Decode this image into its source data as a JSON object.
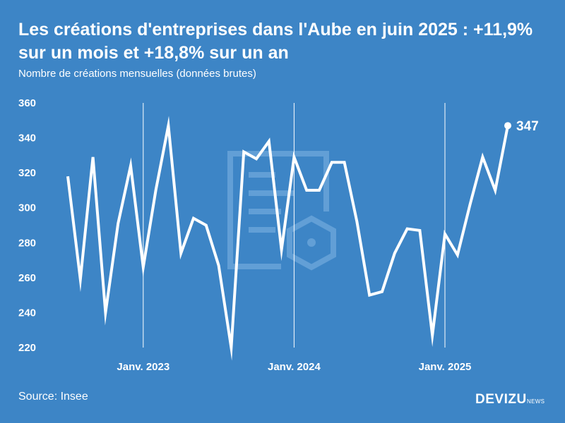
{
  "header": {
    "title": "Les créations d'entreprises dans l'Aube en juin 2025 : +11,9% sur un mois et +18,8% sur un an",
    "subtitle": "Nombre de créations mensuelles (données brutes)"
  },
  "footer": {
    "source": "Source: Insee",
    "brand": "DEVIZU",
    "brand_sub": "NEWS"
  },
  "colors": {
    "background": "#3d85c6",
    "line": "#ffffff",
    "watermark": "#6fa8dc"
  },
  "chart_data": {
    "type": "line",
    "title": "Les créations d'entreprises dans l'Aube en juin 2025 : +11,9% sur un mois et +18,8% sur un an",
    "subtitle": "Nombre de créations mensuelles (données brutes)",
    "xlabel": "",
    "ylabel": "",
    "ylim": [
      220,
      360
    ],
    "yticks": [
      220,
      240,
      260,
      280,
      300,
      320,
      340,
      360
    ],
    "xticks": [
      {
        "label": "Janv. 2023",
        "month": "2023-01"
      },
      {
        "label": "Janv. 2024",
        "month": "2024-01"
      },
      {
        "label": "Janv. 2025",
        "month": "2025-01"
      }
    ],
    "grid": "vertical lines at January",
    "series": [
      {
        "x": [
          "2022-07",
          "2022-08",
          "2022-09",
          "2022-10",
          "2022-11",
          "2022-12",
          "2023-01",
          "2023-02",
          "2023-03",
          "2023-04",
          "2023-05",
          "2023-06",
          "2023-07",
          "2023-08",
          "2023-09",
          "2023-10",
          "2023-11",
          "2023-12",
          "2024-01",
          "2024-02",
          "2024-03",
          "2024-04",
          "2024-05",
          "2024-06",
          "2024-07",
          "2024-08",
          "2024-09",
          "2024-10",
          "2024-11",
          "2024-12",
          "2025-01",
          "2025-02",
          "2025-03",
          "2025-04",
          "2025-05",
          "2025-06"
        ],
        "values": [
          318,
          259,
          329,
          240,
          291,
          324,
          266,
          310,
          347,
          274,
          294,
          290,
          267,
          220,
          332,
          328,
          338,
          276,
          329,
          310,
          310,
          326,
          326,
          292,
          250,
          252,
          274,
          288,
          287,
          227,
          285,
          273,
          302,
          329,
          310,
          347
        ]
      }
    ],
    "last_value_label": "347"
  }
}
